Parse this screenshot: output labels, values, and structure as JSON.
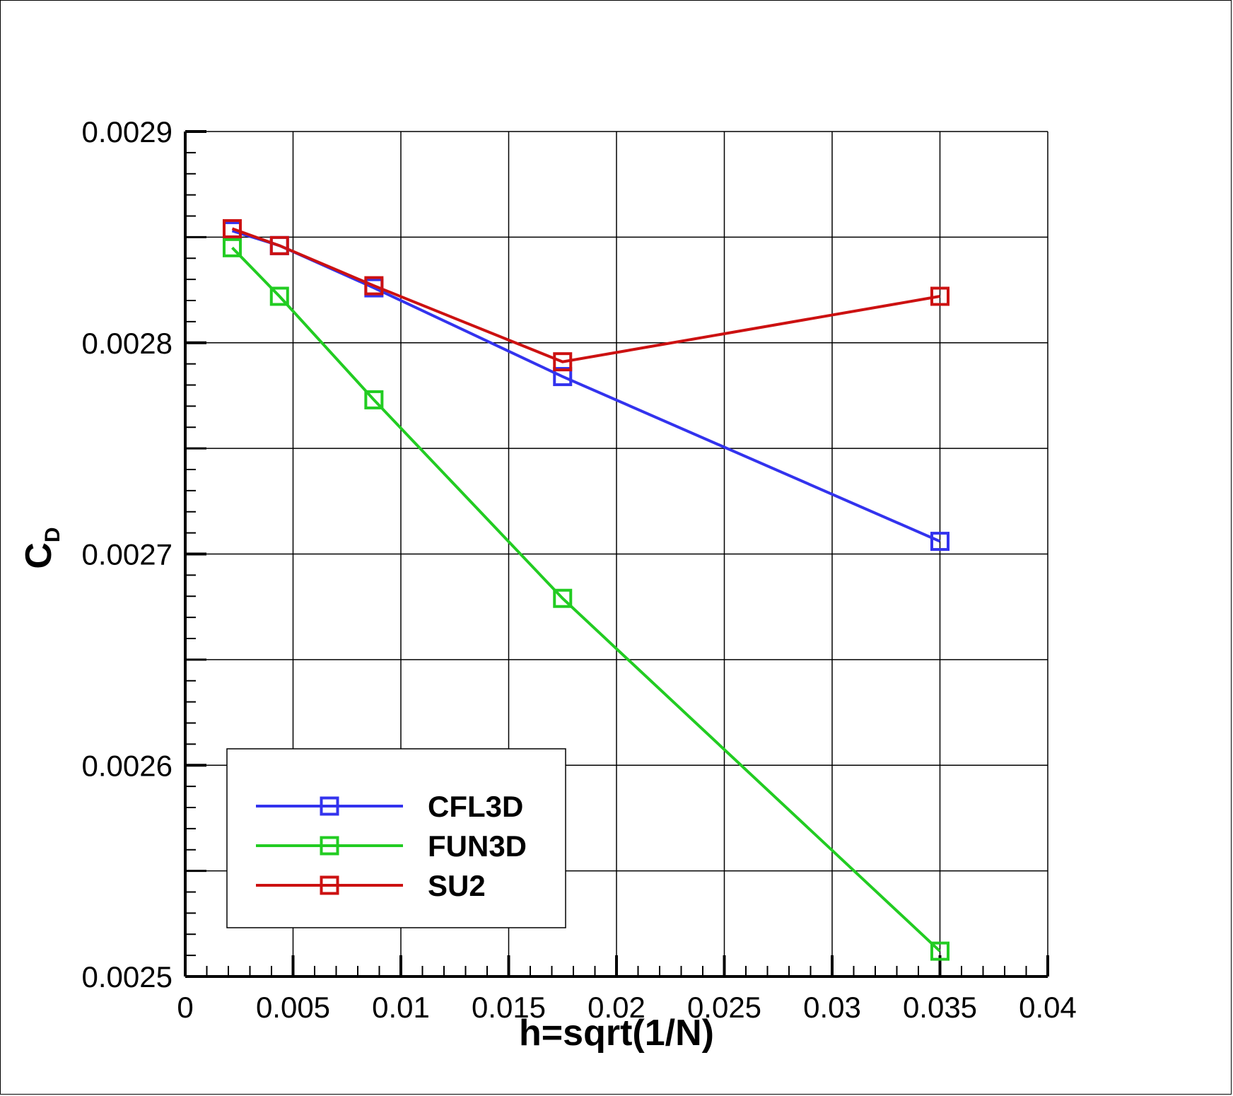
{
  "chart_data": {
    "type": "line",
    "title": "",
    "xlabel": "h=sqrt(1/N)",
    "ylabel_main": "C",
    "ylabel_sub": "D",
    "xlim": [
      0,
      0.04
    ],
    "ylim": [
      0.0025,
      0.0029
    ],
    "grid": true,
    "legend_position": "bottom-left",
    "x_ticks": [
      0,
      0.005,
      0.01,
      0.015,
      0.02,
      0.025,
      0.03,
      0.035,
      0.04
    ],
    "x_tick_labels": [
      "0",
      "0.005",
      "0.01",
      "0.015",
      "0.02",
      "0.025",
      "0.03",
      "0.035",
      "0.04"
    ],
    "y_ticks": [
      0.0025,
      0.0026,
      0.0027,
      0.0028,
      0.0029
    ],
    "y_tick_labels": [
      "0.0025",
      "0.0026",
      "0.0027",
      "0.0028",
      "0.0029"
    ],
    "y_grid": [
      0.0025,
      0.00255,
      0.0026,
      0.00265,
      0.0027,
      0.00275,
      0.0028,
      0.00285,
      0.0029
    ],
    "series": [
      {
        "name": "CFL3D",
        "color": "#3333ee",
        "marker": "square",
        "x": [
          0.00218,
          0.00437,
          0.00875,
          0.0175,
          0.035
        ],
        "y": [
          0.002853,
          0.002846,
          0.002826,
          0.002784,
          0.002706
        ]
      },
      {
        "name": "FUN3D",
        "color": "#22cc22",
        "marker": "square",
        "x": [
          0.00218,
          0.00437,
          0.00875,
          0.0175,
          0.035
        ],
        "y": [
          0.002845,
          0.002822,
          0.002773,
          0.002679,
          0.002512
        ]
      },
      {
        "name": "SU2",
        "color": "#cc1111",
        "marker": "square",
        "x": [
          0.00218,
          0.00437,
          0.00875,
          0.0175,
          0.035
        ],
        "y": [
          0.002854,
          0.002846,
          0.002827,
          0.002791,
          0.002822
        ]
      }
    ]
  }
}
